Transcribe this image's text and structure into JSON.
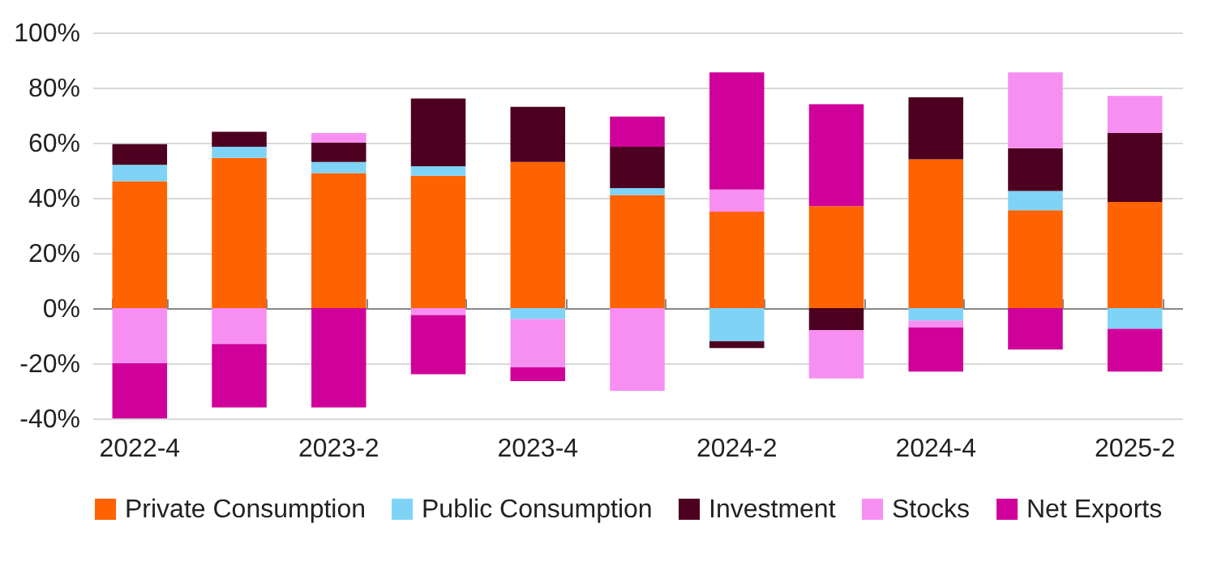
{
  "chart_data": {
    "type": "bar",
    "stacked": true,
    "categories": [
      "2022-4",
      null,
      "2023-2",
      null,
      "2023-4",
      null,
      "2024-2",
      null,
      "2024-4",
      null,
      "2025-2"
    ],
    "series": [
      {
        "name": "Private Consumption",
        "color": "#ff6200",
        "values": [
          46,
          54.5,
          49,
          48,
          53,
          41,
          35,
          37,
          54,
          35.5,
          38.5
        ]
      },
      {
        "name": "Public Consumption",
        "color": "#7fd3f7",
        "values": [
          6,
          4,
          4,
          3.5,
          -4,
          2.5,
          -12,
          null,
          -4.5,
          7,
          -7.5
        ]
      },
      {
        "name": "Investment",
        "color": "#4d0020",
        "values": [
          7.5,
          5.5,
          7,
          24.5,
          20,
          15,
          -2.5,
          -8,
          22.5,
          15.5,
          25
        ]
      },
      {
        "name": "Stocks",
        "color": "#f78ff2",
        "values": [
          -20,
          -13,
          3.5,
          -2.5,
          -17.5,
          -30,
          8,
          -17.5,
          -2.5,
          27.5,
          13.5
        ]
      },
      {
        "name": "Net Exports",
        "color": "#d0009a",
        "values": [
          -20,
          -23,
          -36,
          -21.5,
          -5,
          11,
          42.5,
          37,
          -16,
          -15,
          -15.5
        ]
      }
    ],
    "ylim": [
      -40,
      100
    ],
    "yticks": [
      {
        "value": -40,
        "label": "-40%"
      },
      {
        "value": -20,
        "label": "-20%"
      },
      {
        "value": 0,
        "label": "0%"
      },
      {
        "value": 20,
        "label": "20%"
      },
      {
        "value": 40,
        "label": "40%"
      },
      {
        "value": 60,
        "label": "60%"
      },
      {
        "value": 80,
        "label": "80%"
      },
      {
        "value": 100,
        "label": "100%"
      }
    ],
    "grid": "y",
    "legend": "bottom"
  }
}
